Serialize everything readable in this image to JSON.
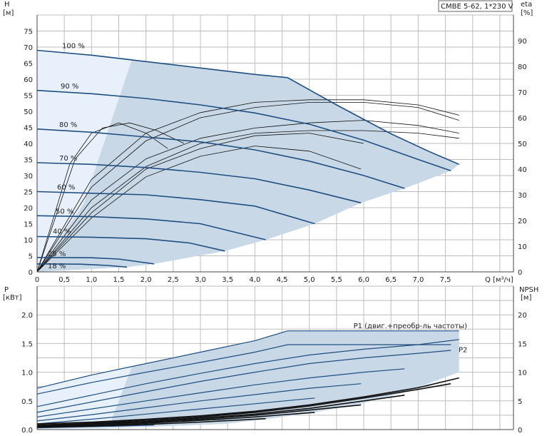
{
  "title": "CMBE 5-62, 1*230 V",
  "colors": {
    "curve": "#1f4f82",
    "region": "#c9d8e6",
    "region_light": "#e8f1fb",
    "grid": "#bdbdbd"
  },
  "chart_data": [
    {
      "type": "line",
      "panel": "top",
      "ylabel_left": [
        "H",
        "[м]"
      ],
      "ylabel_right": [
        "eta",
        "[%]"
      ],
      "xlabel": "Q [м³/ч]",
      "xlim": [
        0,
        8.75
      ],
      "ylim": [
        0,
        80
      ],
      "x_ticks": [
        "0",
        "0,5",
        "1,0",
        "1,5",
        "2,0",
        "2,5",
        "3,0",
        "3,5",
        "4,0",
        "4,5",
        "5,0",
        "5,5",
        "6,0",
        "6,5",
        "7,0",
        "7,5"
      ],
      "y_ticks": [
        "0",
        "5",
        "10",
        "15",
        "20",
        "25",
        "30",
        "35",
        "40",
        "45",
        "50",
        "55",
        "60",
        "65",
        "70",
        "75"
      ],
      "right_ticks": [
        "0",
        "10",
        "20",
        "30",
        "40",
        "50",
        "60",
        "70",
        "80",
        "90"
      ],
      "grid": true,
      "series": [
        {
          "name": "100 %",
          "x": [
            0,
            1.0,
            2.0,
            3.0,
            4.0,
            4.6,
            5.5,
            6.5,
            7.2,
            7.75
          ],
          "y": [
            69,
            67.5,
            65.5,
            63.5,
            61.5,
            60.5,
            52,
            43,
            37.5,
            33.5
          ]
        },
        {
          "name": "90 %",
          "x": [
            0,
            1.0,
            2.0,
            3.0,
            4.0,
            5.0,
            6.0,
            7.0,
            7.6
          ],
          "y": [
            56.5,
            55.5,
            54,
            52,
            49.5,
            46,
            41,
            35,
            31.5
          ]
        },
        {
          "name": "80 %",
          "x": [
            0,
            1.0,
            2.0,
            3.0,
            4.0,
            5.0,
            6.0,
            6.75
          ],
          "y": [
            44.5,
            43.5,
            42,
            40.5,
            38,
            34.5,
            30,
            26
          ]
        },
        {
          "name": "70 %",
          "x": [
            0,
            1.0,
            2.0,
            3.0,
            4.0,
            5.0,
            5.95
          ],
          "y": [
            34,
            33.5,
            32.5,
            31,
            29,
            25.5,
            21.5
          ]
        },
        {
          "name": "60 %",
          "x": [
            0,
            1.0,
            2.0,
            3.0,
            4.0,
            5.1
          ],
          "y": [
            25,
            24.5,
            24,
            22.5,
            20.5,
            15
          ]
        },
        {
          "name": "50 %",
          "x": [
            0,
            1.0,
            2.0,
            3.0,
            4.2
          ],
          "y": [
            17.5,
            17.2,
            16.5,
            15,
            10
          ]
        },
        {
          "name": "40 %",
          "x": [
            0,
            1.0,
            2.0,
            2.8,
            3.45
          ],
          "y": [
            11,
            10.8,
            10.3,
            9,
            6.5
          ]
        },
        {
          "name": "25 %",
          "x": [
            0,
            1.0,
            1.5,
            2.15
          ],
          "y": [
            4.5,
            4.4,
            4,
            2.5
          ]
        },
        {
          "name": "18 %",
          "x": [
            0,
            0.8,
            1.3,
            1.65
          ],
          "y": [
            2.5,
            2.4,
            2.0,
            1.5
          ]
        }
      ],
      "eta_series": [
        {
          "x": [
            0,
            1.0,
            2.0,
            3.0,
            4.0,
            5.0,
            6.0,
            7.0,
            7.75
          ],
          "y": [
            0,
            36,
            54,
            62,
            66,
            67,
            67,
            65,
            61
          ]
        },
        {
          "x": [
            0,
            1.0,
            2.0,
            3.0,
            4.0,
            5.0,
            6.0,
            7.0,
            7.75
          ],
          "y": [
            0,
            33,
            51,
            60,
            64,
            66,
            66,
            64,
            59
          ]
        },
        {
          "x": [
            0,
            1.0,
            2.0,
            3.0,
            4.0,
            5.0,
            6.0,
            7.0,
            7.75
          ],
          "y": [
            0,
            28,
            44,
            52,
            56,
            58,
            59,
            57,
            54
          ]
        },
        {
          "x": [
            0,
            1.0,
            2.0,
            3.0,
            4.0,
            5.0,
            6.0,
            7.0,
            7.75
          ],
          "y": [
            0,
            25,
            41,
            50,
            54,
            55,
            55,
            54,
            52
          ]
        },
        {
          "x": [
            0,
            1.0,
            2.0,
            3.0,
            4.0,
            5.0,
            6.0
          ],
          "y": [
            0,
            23,
            40,
            48,
            53,
            54,
            50
          ]
        },
        {
          "x": [
            0,
            1.0,
            2.0,
            3.0,
            4.0,
            5.0,
            5.95
          ],
          "y": [
            0,
            21,
            37,
            45,
            49,
            47,
            40
          ]
        },
        {
          "x": [
            0,
            0.7,
            1.2,
            1.7,
            2.2,
            2.7
          ],
          "y": [
            0,
            44,
            56,
            58,
            55,
            50
          ]
        },
        {
          "x": [
            0,
            0.6,
            1.0,
            1.5,
            2.0,
            2.4
          ],
          "y": [
            0,
            42,
            54,
            58,
            54,
            48
          ]
        }
      ]
    },
    {
      "type": "line",
      "panel": "bottom",
      "ylabel_left": [
        "P",
        "[кВт]"
      ],
      "ylabel_right": [
        "NPSH",
        "[м]"
      ],
      "xlim": [
        0,
        8.75
      ],
      "ylim": [
        0,
        2.5
      ],
      "y_ticks": [
        "0.0",
        "0.5",
        "1.0",
        "1.5",
        "2.0"
      ],
      "right_ticks": [
        "0",
        "5",
        "10",
        "15",
        "20"
      ],
      "grid": true,
      "series": [
        {
          "name": "P1 (двиг.+преобр-ль частоты)",
          "x": [
            0,
            1.0,
            2.0,
            3.0,
            4.0,
            4.6,
            5.5,
            6.5,
            7.75
          ],
          "y": [
            0.72,
            0.95,
            1.15,
            1.35,
            1.55,
            1.72,
            1.72,
            1.72,
            1.72
          ]
        },
        {
          "name": "P2",
          "x": [
            0,
            1.0,
            2.0,
            3.0,
            4.0,
            4.6,
            5.5,
            6.5,
            7.6
          ],
          "y": [
            0.62,
            0.82,
            1.0,
            1.17,
            1.35,
            1.48,
            1.48,
            1.48,
            1.48
          ]
        },
        {
          "name": "",
          "x": [
            0,
            1.0,
            2.0,
            3.0,
            4.0,
            5.0,
            6.0,
            7.0,
            7.75
          ],
          "y": [
            0.4,
            0.6,
            0.8,
            0.98,
            1.15,
            1.3,
            1.4,
            1.48,
            1.57
          ]
        },
        {
          "name": "",
          "x": [
            0,
            1.0,
            2.0,
            3.0,
            4.0,
            5.0,
            6.0,
            7.0,
            7.6
          ],
          "y": [
            0.3,
            0.48,
            0.66,
            0.84,
            1.0,
            1.15,
            1.25,
            1.33,
            1.38
          ]
        },
        {
          "name": "",
          "x": [
            0,
            1.0,
            2.0,
            3.0,
            4.0,
            5.0,
            6.0,
            6.75
          ],
          "y": [
            0.22,
            0.36,
            0.5,
            0.64,
            0.78,
            0.9,
            1.0,
            1.06
          ]
        },
        {
          "name": "",
          "x": [
            0,
            1.0,
            2.0,
            3.0,
            4.0,
            5.0,
            5.95
          ],
          "y": [
            0.15,
            0.26,
            0.38,
            0.5,
            0.61,
            0.72,
            0.8
          ]
        },
        {
          "name": "",
          "x": [
            0,
            1.0,
            2.0,
            3.0,
            4.0,
            5.1
          ],
          "y": [
            0.1,
            0.18,
            0.27,
            0.36,
            0.45,
            0.55
          ]
        },
        {
          "name": "",
          "x": [
            0,
            1.0,
            2.0,
            3.0,
            4.2
          ],
          "y": [
            0.07,
            0.12,
            0.18,
            0.24,
            0.32
          ]
        },
        {
          "name": "",
          "x": [
            0,
            1.0,
            2.0,
            2.8,
            3.45
          ],
          "y": [
            0.05,
            0.08,
            0.12,
            0.15,
            0.18
          ]
        },
        {
          "name": "",
          "x": [
            0,
            1.0,
            1.5,
            2.15
          ],
          "y": [
            0.03,
            0.05,
            0.06,
            0.08
          ]
        }
      ],
      "npsh_series": [
        {
          "x": [
            0,
            1.0,
            2.0,
            3.0,
            4.0,
            5.0,
            6.0,
            7.0,
            7.75
          ],
          "y": [
            0.1,
            0.13,
            0.18,
            0.24,
            0.32,
            0.43,
            0.57,
            0.73,
            0.9
          ]
        },
        {
          "x": [
            0,
            1.0,
            2.0,
            3.0,
            4.0,
            5.0,
            6.0,
            7.0,
            7.6
          ],
          "y": [
            0.08,
            0.11,
            0.16,
            0.22,
            0.3,
            0.41,
            0.55,
            0.7,
            0.8
          ]
        },
        {
          "x": [
            0,
            1.0,
            2.0,
            3.0,
            4.0,
            5.0,
            6.0,
            6.75
          ],
          "y": [
            0.07,
            0.1,
            0.14,
            0.2,
            0.27,
            0.37,
            0.5,
            0.6
          ]
        },
        {
          "x": [
            0,
            1.0,
            2.0,
            3.0,
            4.0,
            5.0,
            5.95
          ],
          "y": [
            0.06,
            0.09,
            0.13,
            0.18,
            0.25,
            0.34,
            0.43
          ]
        },
        {
          "x": [
            0,
            1.0,
            2.0,
            3.0,
            4.0,
            5.1
          ],
          "y": [
            0.05,
            0.07,
            0.11,
            0.16,
            0.22,
            0.3
          ]
        },
        {
          "x": [
            0,
            1.0,
            2.0,
            3.0,
            4.2
          ],
          "y": [
            0.04,
            0.06,
            0.09,
            0.13,
            0.19
          ]
        }
      ]
    }
  ]
}
